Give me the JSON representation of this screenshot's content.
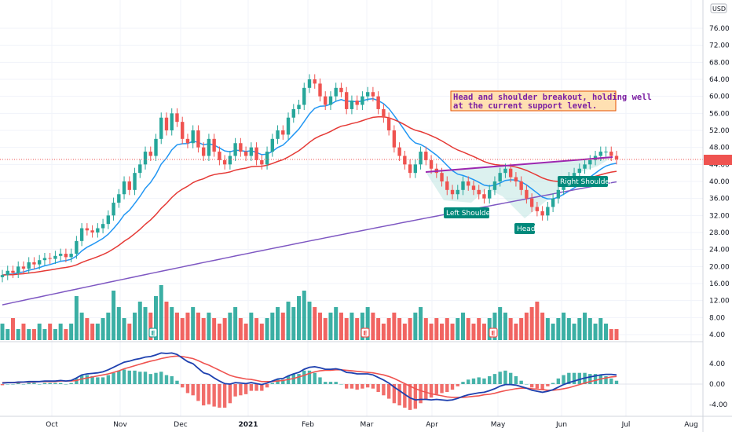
{
  "currency": "USD",
  "annotation": {
    "line1": "Head and shoulder breakout, holding well",
    "line2": "at the current support level."
  },
  "labels": {
    "left_shoulder": "Left Shoulder",
    "head": "Head",
    "right_shoulder": "Right Shoulder"
  },
  "colors": {
    "up": "#26a69a",
    "down": "#ef5350",
    "ema_fast": "#2196f3",
    "ema_mid": "#e53935",
    "ema_slow": "#7e57c2",
    "pattern_fill": "#b2dfdb",
    "label_bg": "#00897b",
    "macd": "#1e40af",
    "signal": "#ef5350"
  },
  "chart_data": {
    "type": "candlestick",
    "x_ticks": [
      "Oct",
      "Nov",
      "Dec",
      "2021",
      "Feb",
      "Mar",
      "Apr",
      "May",
      "Jun",
      "Jul",
      "Aug"
    ],
    "price_axis": {
      "ticks": [
        "76.00",
        "72.00",
        "68.00",
        "64.00",
        "60.00",
        "56.00",
        "52.00",
        "48.00",
        "44.00",
        "40.00",
        "36.00",
        "32.00",
        "28.00",
        "24.00",
        "20.00",
        "16.00",
        "12.00",
        "8.00",
        "4.00"
      ]
    },
    "macd_axis": {
      "ticks": [
        "4.00",
        "0.00",
        "-4.00"
      ]
    },
    "earnings_markers": [
      "E",
      "E",
      "E"
    ],
    "last_price": 45.2,
    "series": [
      {
        "name": "close",
        "values": [
          18,
          19,
          18.5,
          20,
          19.5,
          21,
          20.5,
          21.5,
          22,
          21.8,
          22.5,
          23,
          22.2,
          23,
          26,
          29,
          28.5,
          28,
          29,
          30,
          32,
          35,
          37,
          40,
          38,
          42,
          44,
          47,
          46,
          50,
          55,
          52,
          56,
          54,
          50,
          49,
          52,
          48,
          46,
          50,
          47,
          45,
          44,
          46,
          49,
          47,
          46,
          48,
          45,
          44,
          47,
          50,
          52,
          51,
          55,
          57,
          58,
          62,
          64,
          63,
          60,
          58,
          60,
          62,
          61,
          57,
          59,
          58,
          60,
          61,
          60,
          57,
          55,
          52,
          48,
          46,
          44,
          42,
          44,
          47,
          45,
          43,
          42,
          40,
          38,
          37,
          38,
          40,
          39,
          38,
          37,
          36,
          38,
          40,
          42,
          43,
          41,
          40,
          38,
          36,
          34,
          33,
          32,
          34,
          36,
          38,
          40,
          41,
          42,
          43,
          44,
          45,
          46,
          47,
          47,
          46,
          45.2
        ]
      },
      {
        "name": "volume",
        "values": [
          3,
          2,
          4,
          2,
          3,
          2,
          2,
          3,
          2,
          3,
          2,
          3,
          2,
          3,
          8,
          5,
          4,
          3,
          3,
          4,
          5,
          9,
          6,
          4,
          3,
          5,
          7,
          6,
          5,
          8,
          10,
          7,
          6,
          5,
          4,
          5,
          6,
          5,
          4,
          5,
          4,
          3,
          4,
          5,
          6,
          4,
          3,
          5,
          4,
          3,
          4,
          5,
          6,
          5,
          7,
          6,
          8,
          9,
          7,
          6,
          5,
          4,
          5,
          6,
          5,
          4,
          5,
          4,
          5,
          6,
          5,
          4,
          3,
          4,
          5,
          4,
          3,
          4,
          5,
          6,
          4,
          3,
          4,
          3,
          4,
          3,
          4,
          5,
          4,
          3,
          4,
          3,
          4,
          5,
          6,
          5,
          4,
          3,
          4,
          5,
          6,
          7,
          5,
          4,
          3,
          4,
          5,
          4,
          3,
          4,
          5,
          4,
          3,
          4,
          3,
          2,
          2
        ]
      },
      {
        "name": "MACD",
        "values": [
          0.2,
          0.3,
          0.3,
          0.4,
          0.4,
          0.5,
          0.5,
          0.5,
          0.6,
          0.6,
          0.6,
          0.7,
          0.6,
          0.7,
          1.2,
          1.8,
          2.0,
          2.1,
          2.2,
          2.4,
          2.8,
          3.3,
          3.8,
          4.3,
          4.5,
          4.8,
          5.0,
          5.3,
          5.4,
          5.7,
          6.1,
          6.0,
          6.1,
          5.8,
          5.1,
          4.4,
          4.0,
          3.1,
          2.2,
          1.9,
          1.2,
          0.6,
          0.1,
          0.0,
          0.3,
          0.2,
          0.1,
          0.3,
          0.1,
          -0.1,
          0.2,
          0.6,
          1.0,
          1.1,
          1.6,
          2.0,
          2.3,
          2.9,
          3.3,
          3.4,
          3.2,
          2.9,
          2.9,
          3.0,
          2.8,
          2.3,
          2.2,
          2.0,
          2.0,
          2.0,
          1.8,
          1.3,
          0.8,
          0.2,
          -0.6,
          -1.3,
          -2.0,
          -2.7,
          -3.1,
          -3.0,
          -3.0,
          -3.1,
          -3.0,
          -3.1,
          -3.2,
          -3.1,
          -2.8,
          -2.4,
          -2.1,
          -1.9,
          -1.7,
          -1.6,
          -1.3,
          -0.9,
          -0.4,
          -0.1,
          -0.1,
          -0.2,
          -0.5,
          -0.8,
          -1.2,
          -1.4,
          -1.6,
          -1.4,
          -1.1,
          -0.6,
          -0.1,
          0.3,
          0.6,
          0.9,
          1.2,
          1.4,
          1.6,
          1.8,
          1.9,
          1.9,
          1.8
        ]
      },
      {
        "name": "Signal",
        "values": [
          0.3,
          0.3,
          0.3,
          0.3,
          0.4,
          0.4,
          0.4,
          0.5,
          0.5,
          0.5,
          0.5,
          0.6,
          0.6,
          0.6,
          0.7,
          1.0,
          1.2,
          1.4,
          1.6,
          1.8,
          2.0,
          2.3,
          2.6,
          3.0,
          3.3,
          3.6,
          3.9,
          4.2,
          4.5,
          4.7,
          5.0,
          5.2,
          5.4,
          5.5,
          5.4,
          5.2,
          5.0,
          4.6,
          4.1,
          3.7,
          3.2,
          2.7,
          2.2,
          1.7,
          1.4,
          1.2,
          1.0,
          0.9,
          0.7,
          0.5,
          0.5,
          0.5,
          0.6,
          0.7,
          0.9,
          1.1,
          1.4,
          1.7,
          2.1,
          2.4,
          2.6,
          2.7,
          2.7,
          2.8,
          2.8,
          2.7,
          2.6,
          2.5,
          2.4,
          2.3,
          2.2,
          2.0,
          1.8,
          1.5,
          1.1,
          0.6,
          0.1,
          -0.4,
          -0.9,
          -1.3,
          -1.6,
          -1.9,
          -2.1,
          -2.3,
          -2.5,
          -2.6,
          -2.6,
          -2.6,
          -2.5,
          -2.4,
          -2.3,
          -2.1,
          -2.0,
          -1.8,
          -1.5,
          -1.3,
          -1.1,
          -0.9,
          -0.8,
          -0.8,
          -0.9,
          -1.0,
          -1.1,
          -1.2,
          -1.2,
          -1.1,
          -0.9,
          -0.7,
          -0.4,
          -0.1,
          0.2,
          0.5,
          0.7,
          1.0,
          1.2,
          1.4,
          1.5
        ]
      }
    ]
  }
}
